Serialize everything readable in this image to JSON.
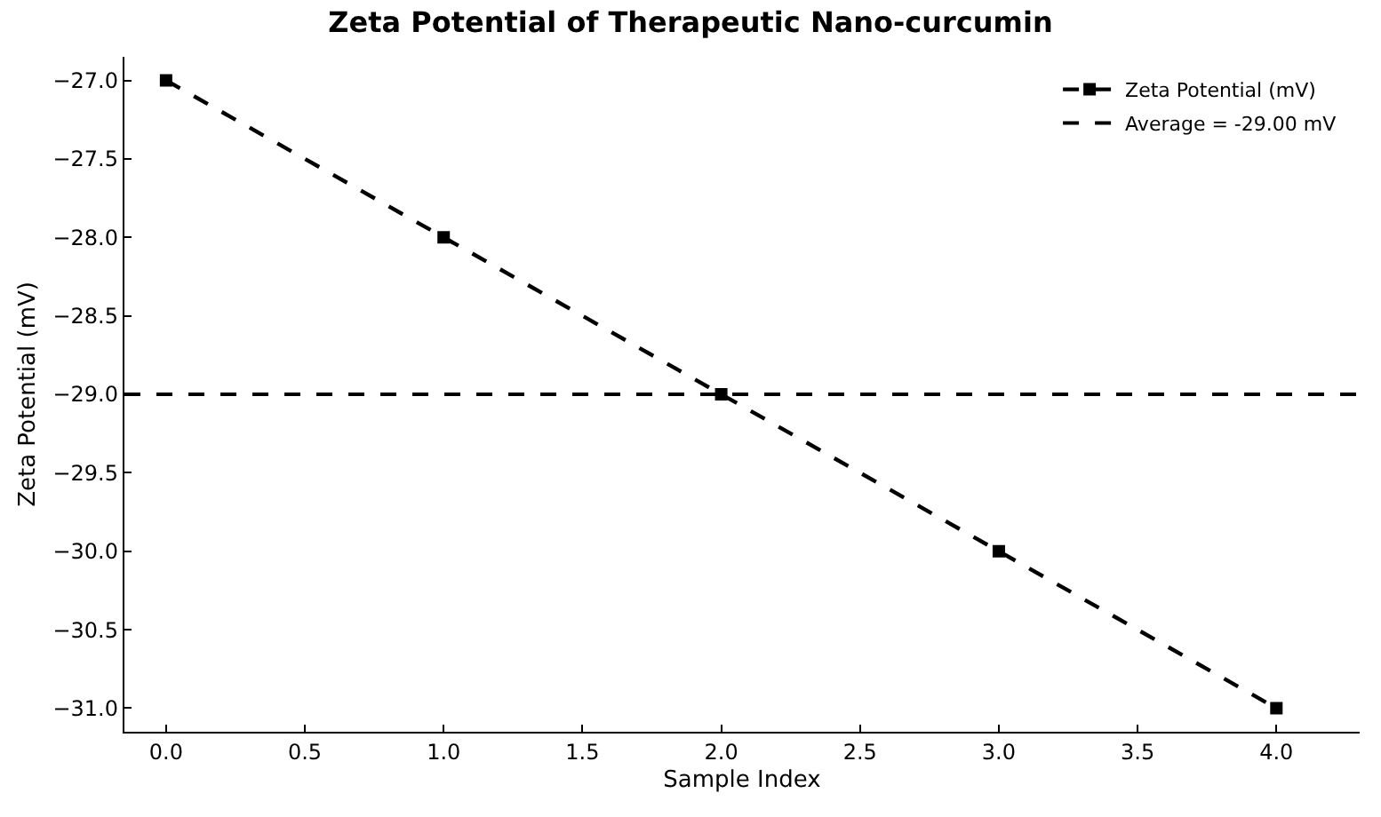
{
  "chart_data": {
    "type": "line",
    "title": "Zeta Potential of Therapeutic Nano-curcumin",
    "xlabel": "Sample Index",
    "ylabel": "Zeta Potential (mV)",
    "x": [
      0,
      1,
      2,
      3,
      4
    ],
    "series": [
      {
        "name": "Zeta Potential (mV)",
        "color": "#000000",
        "values": [
          -27.0,
          -28.0,
          -29.0,
          -30.0,
          -31.0
        ]
      }
    ],
    "ref_lines": [
      {
        "axis": "y",
        "value": -29.0,
        "label": "Average = -29.00 mV",
        "color": "#000000",
        "line_style": "dashed"
      }
    ],
    "xlim": [
      -0.15,
      4.3
    ],
    "xticks": [
      {
        "value": 0,
        "label": "0.0"
      },
      {
        "value": 0.5,
        "label": "0.5"
      },
      {
        "value": 1,
        "label": "1.0"
      },
      {
        "value": 1.5,
        "label": "1.5"
      },
      {
        "value": 2,
        "label": "2.0"
      },
      {
        "value": 2.5,
        "label": "2.5"
      },
      {
        "value": 3,
        "label": "3.0"
      },
      {
        "value": 3.5,
        "label": "3.5"
      },
      {
        "value": 4,
        "label": "4.0"
      }
    ],
    "ylim": [
      -31.15,
      -26.85
    ],
    "yticks": [
      {
        "value": -27,
        "label": "−27.0"
      },
      {
        "value": -27.5,
        "label": "−27.5"
      },
      {
        "value": -28,
        "label": "−28.0"
      },
      {
        "value": -28.5,
        "label": "−28.5"
      },
      {
        "value": -29,
        "label": "−29.0"
      },
      {
        "value": -29.5,
        "label": "−29.5"
      },
      {
        "value": -30,
        "label": "−30.0"
      },
      {
        "value": -30.5,
        "label": "−30.5"
      },
      {
        "value": -31,
        "label": "−31.0"
      }
    ],
    "legend": "top right",
    "marker": "square",
    "line_style": "dashed"
  }
}
